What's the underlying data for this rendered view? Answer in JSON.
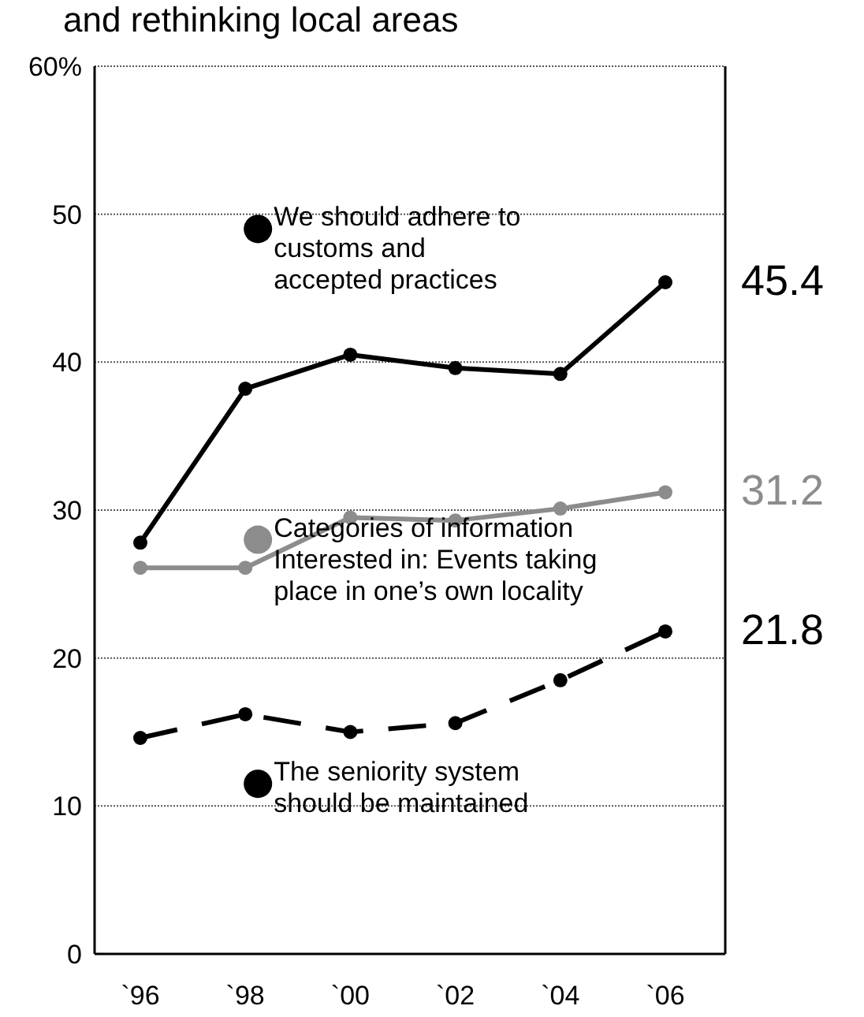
{
  "chart_data": {
    "type": "line",
    "title": "and rethinking local areas",
    "categories": [
      "`96",
      "`98",
      "`00",
      "`02",
      "`04",
      "`06"
    ],
    "series": [
      {
        "name": "We should adhere to customs and accepted practices",
        "color": "#000000",
        "values": [
          27.8,
          38.2,
          40.5,
          39.6,
          39.2,
          45.4
        ],
        "value_labels": [
          null,
          null,
          null,
          null,
          null,
          "45.4"
        ]
      },
      {
        "name": "Categories of information Interested in: Events taking place in one’s own locality",
        "color": "#8c8c8c",
        "values": [
          26.1,
          26.1,
          29.5,
          29.3,
          30.1,
          31.2
        ],
        "value_labels": [
          null,
          null,
          null,
          null,
          null,
          "31.2"
        ]
      },
      {
        "name": "The seniority system should be maintained",
        "color": "#000000",
        "line_style": "dashed",
        "values": [
          14.6,
          16.2,
          15.0,
          15.6,
          18.5,
          21.8
        ],
        "value_labels": [
          null,
          null,
          null,
          null,
          null,
          "21.8"
        ]
      }
    ],
    "ylim": [
      0,
      60
    ],
    "yticks": [
      0,
      10,
      20,
      30,
      40,
      {
        "value": 60,
        "label": "60%"
      },
      50
    ],
    "grid": "y",
    "marker": "circle",
    "legend": "center"
  }
}
